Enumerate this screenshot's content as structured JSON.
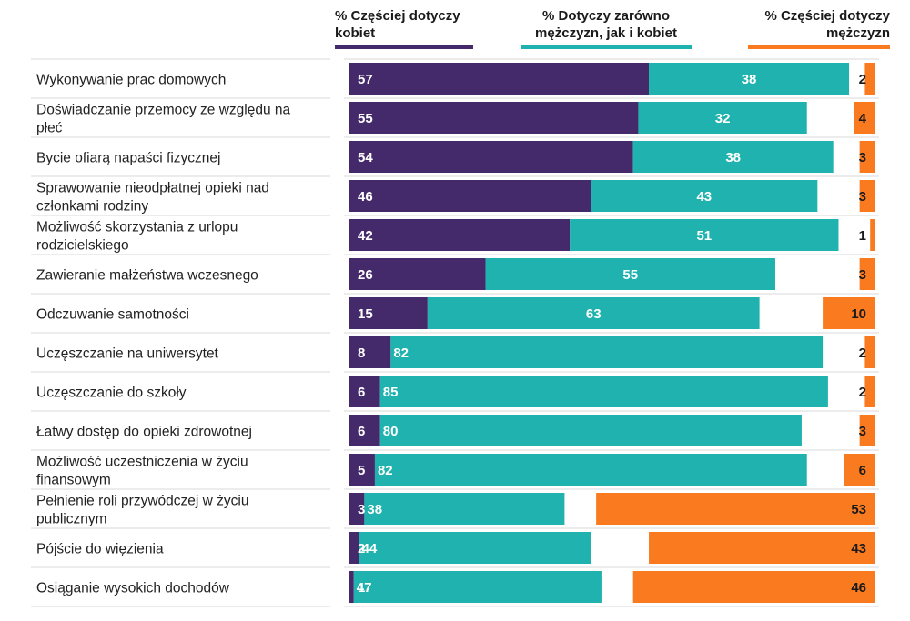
{
  "legend": {
    "women": "% Częściej dotyczy kobiet",
    "both": "% Dotyczy zarówno mężczyzn, jak i kobiet",
    "men": "% Częściej dotyczy mężczyzn"
  },
  "colors": {
    "women": "#452a6b",
    "both": "#1fb2ae",
    "men": "#f97a1f",
    "separator": "#d9d9d9"
  },
  "chart_data": {
    "type": "bar",
    "orientation": "horizontal",
    "stacked": true,
    "categories": [
      [
        "Wykonywanie prac domowych"
      ],
      [
        "Doświadczanie przemocy ze względu na",
        "płeć"
      ],
      [
        "Bycie ofiarą napaści fizycznej"
      ],
      [
        "Sprawowanie nieodpłatnej opieki nad",
        "członkami rodziny"
      ],
      [
        "Możliwość skorzystania z urlopu",
        "rodzicielskiego"
      ],
      [
        "Zawieranie małżeństwa wczesnego"
      ],
      [
        "Odczuwanie samotności"
      ],
      [
        "Uczęszczanie na uniwersytet"
      ],
      [
        "Uczęszczanie do szkoły"
      ],
      [
        "Łatwy dostęp do opieki zdrowotnej"
      ],
      [
        "Możliwość uczestniczenia w życiu",
        "finansowym"
      ],
      [
        "Pełnienie roli przywódczej w życiu",
        "publicznym"
      ],
      [
        "Pójście do więzienia"
      ],
      [
        "Osiąganie wysokich dochodów"
      ]
    ],
    "series": [
      {
        "name": "% Częściej dotyczy kobiet",
        "key": "women",
        "values": [
          57,
          55,
          54,
          46,
          42,
          26,
          15,
          8,
          6,
          6,
          5,
          3,
          2,
          1
        ]
      },
      {
        "name": "% Dotyczy zarówno mężczyzn, jak i kobiet",
        "key": "both",
        "values": [
          38,
          32,
          38,
          43,
          51,
          55,
          63,
          82,
          85,
          80,
          82,
          38,
          44,
          47
        ]
      },
      {
        "name": "% Częściej dotyczy mężczyzn",
        "key": "men",
        "values": [
          2,
          4,
          3,
          3,
          1,
          3,
          10,
          2,
          2,
          3,
          6,
          53,
          43,
          46
        ]
      }
    ],
    "xlim": [
      0,
      100
    ],
    "grid": false,
    "legend_position": "top"
  }
}
